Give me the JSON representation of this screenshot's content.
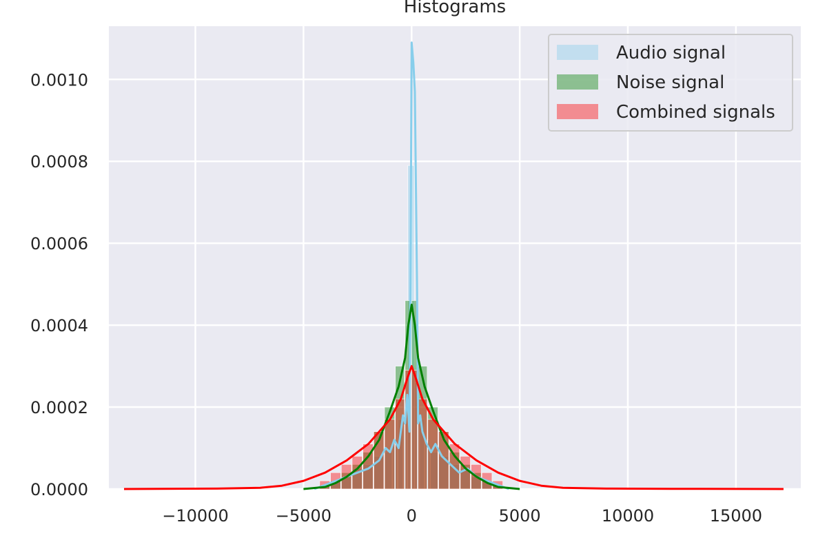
{
  "chart_data": {
    "type": "histogram",
    "title": "Histograms",
    "xlabel": "",
    "ylabel": "",
    "xlim": [
      -14000,
      18000
    ],
    "ylim": [
      0,
      0.00113
    ],
    "xticks": [
      -10000,
      -5000,
      0,
      5000,
      10000,
      15000
    ],
    "xtick_labels": [
      "−10000",
      "−5000",
      "0",
      "5000",
      "10000",
      "15000"
    ],
    "yticks": [
      0,
      0.0002,
      0.0004,
      0.0006,
      0.0008,
      0.001
    ],
    "ytick_labels": [
      "0.0000",
      "0.0002",
      "0.0004",
      "0.0006",
      "0.0008",
      "0.0010"
    ],
    "grid": true,
    "legend_position": "top-right",
    "series": [
      {
        "name": "Audio signal",
        "color": "#87ceeb",
        "bar_alpha": 0.4,
        "bins": [
          [
            -4000,
            1e-05
          ],
          [
            -3500,
            2e-05
          ],
          [
            -3000,
            3e-05
          ],
          [
            -2500,
            5e-05
          ],
          [
            -2000,
            6e-05
          ],
          [
            -1500,
            8e-05
          ],
          [
            -1000,
            9e-05
          ],
          [
            -750,
            0.00012
          ],
          [
            -500,
            0.00017
          ],
          [
            -250,
            0.00022
          ],
          [
            -100,
            0.00079
          ],
          [
            50,
            0.00079
          ],
          [
            250,
            0.00026
          ],
          [
            500,
            0.00017
          ],
          [
            750,
            0.00012
          ],
          [
            1000,
            9e-05
          ],
          [
            1500,
            8e-05
          ],
          [
            2000,
            6e-05
          ],
          [
            2500,
            5e-05
          ],
          [
            3000,
            3e-05
          ],
          [
            3500,
            2e-05
          ],
          [
            4000,
            1e-05
          ]
        ],
        "kde": [
          [
            -4500,
            0.0
          ],
          [
            -3500,
            2e-05
          ],
          [
            -3000,
            3e-05
          ],
          [
            -2500,
            4e-05
          ],
          [
            -2000,
            5e-05
          ],
          [
            -1500,
            7e-05
          ],
          [
            -1200,
            0.0001
          ],
          [
            -1000,
            9e-05
          ],
          [
            -800,
            0.00012
          ],
          [
            -600,
            0.0001
          ],
          [
            -400,
            0.00018
          ],
          [
            -300,
            0.00016
          ],
          [
            -200,
            0.00023
          ],
          [
            -100,
            0.00014
          ],
          [
            -50,
            0.0005
          ],
          [
            0,
            0.00109
          ],
          [
            80,
            0.00104
          ],
          [
            150,
            0.00097
          ],
          [
            250,
            0.0005
          ],
          [
            300,
            0.00016
          ],
          [
            400,
            0.00018
          ],
          [
            500,
            0.00014
          ],
          [
            700,
            0.00011
          ],
          [
            900,
            9e-05
          ],
          [
            1100,
            0.00011
          ],
          [
            1400,
            8e-05
          ],
          [
            1800,
            6e-05
          ],
          [
            2200,
            4e-05
          ],
          [
            2600,
            5e-05
          ],
          [
            3000,
            3e-05
          ],
          [
            3500,
            2e-05
          ],
          [
            4500,
            0.0
          ]
        ]
      },
      {
        "name": "Noise signal",
        "color": "#008000",
        "bar_alpha": 0.4,
        "bins": [
          [
            -4000,
            1e-05
          ],
          [
            -3500,
            2e-05
          ],
          [
            -3000,
            4e-05
          ],
          [
            -2500,
            6e-05
          ],
          [
            -2000,
            9e-05
          ],
          [
            -1500,
            0.00014
          ],
          [
            -1000,
            0.0002
          ],
          [
            -500,
            0.0003
          ],
          [
            -100,
            0.00046
          ],
          [
            100,
            0.00046
          ],
          [
            500,
            0.0003
          ],
          [
            1000,
            0.0002
          ],
          [
            1500,
            0.00014
          ],
          [
            2000,
            9e-05
          ],
          [
            2500,
            6e-05
          ],
          [
            3000,
            4e-05
          ],
          [
            3500,
            2e-05
          ],
          [
            4000,
            1e-05
          ]
        ],
        "kde": [
          [
            -5000,
            0.0
          ],
          [
            -4000,
            5e-06
          ],
          [
            -3500,
            1.5e-05
          ],
          [
            -3000,
            3e-05
          ],
          [
            -2500,
            5e-05
          ],
          [
            -2000,
            8e-05
          ],
          [
            -1500,
            0.00012
          ],
          [
            -1000,
            0.00019
          ],
          [
            -600,
            0.00025
          ],
          [
            -300,
            0.00032
          ],
          [
            -150,
            0.0004
          ],
          [
            0,
            0.00045
          ],
          [
            150,
            0.0004
          ],
          [
            300,
            0.00032
          ],
          [
            600,
            0.00025
          ],
          [
            1000,
            0.00019
          ],
          [
            1500,
            0.00012
          ],
          [
            2000,
            8e-05
          ],
          [
            2500,
            5e-05
          ],
          [
            3000,
            3e-05
          ],
          [
            3500,
            1.5e-05
          ],
          [
            4000,
            5e-06
          ],
          [
            5000,
            0.0
          ]
        ]
      },
      {
        "name": "Combined signals",
        "color": "#ff0000",
        "bar_alpha": 0.4,
        "bins": [
          [
            -4000,
            2e-05
          ],
          [
            -3500,
            4e-05
          ],
          [
            -3000,
            6e-05
          ],
          [
            -2500,
            8e-05
          ],
          [
            -2000,
            0.00011
          ],
          [
            -1500,
            0.00014
          ],
          [
            -1000,
            0.00017
          ],
          [
            -500,
            0.00022
          ],
          [
            -100,
            0.00029
          ],
          [
            100,
            0.00029
          ],
          [
            500,
            0.00022
          ],
          [
            1000,
            0.00017
          ],
          [
            1500,
            0.00014
          ],
          [
            2000,
            0.00011
          ],
          [
            2500,
            8e-05
          ],
          [
            3000,
            6e-05
          ],
          [
            3500,
            4e-05
          ],
          [
            4000,
            2e-05
          ]
        ],
        "kde": [
          [
            -13300,
            0.0
          ],
          [
            -9000,
            1e-06
          ],
          [
            -7000,
            3e-06
          ],
          [
            -6000,
            8e-06
          ],
          [
            -5000,
            2e-05
          ],
          [
            -4000,
            4e-05
          ],
          [
            -3000,
            7e-05
          ],
          [
            -2000,
            0.00011
          ],
          [
            -1000,
            0.00017
          ],
          [
            -500,
            0.00022
          ],
          [
            -200,
            0.00027
          ],
          [
            0,
            0.0003
          ],
          [
            200,
            0.00027
          ],
          [
            500,
            0.00022
          ],
          [
            1000,
            0.00017
          ],
          [
            2000,
            0.00011
          ],
          [
            3000,
            7e-05
          ],
          [
            4000,
            4e-05
          ],
          [
            5000,
            2e-05
          ],
          [
            6000,
            8e-06
          ],
          [
            7000,
            3e-06
          ],
          [
            9000,
            1e-06
          ],
          [
            12000,
            5e-07
          ],
          [
            17200,
            0.0
          ]
        ]
      }
    ]
  }
}
